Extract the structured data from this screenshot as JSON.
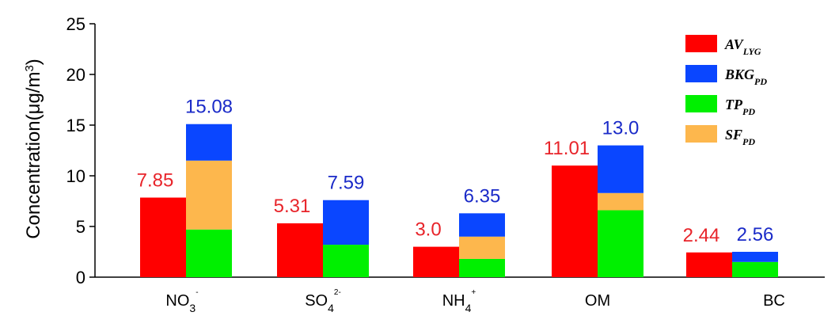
{
  "chart_data": {
    "type": "bar",
    "ylabel_main": "Concentration(μg/m",
    "ylabel_sup": "3",
    "ylabel_tail": ")",
    "ylim": [
      0,
      25
    ],
    "yticks": [
      "0",
      "5",
      "10",
      "15",
      "20",
      "25"
    ],
    "categories": [
      {
        "base": "NO",
        "sub": "3",
        "sup": "-"
      },
      {
        "base": "SO",
        "sub": "4",
        "sup": "2-"
      },
      {
        "base": "NH",
        "sub": "4",
        "sup": "+"
      },
      {
        "base": "OM",
        "sub": "",
        "sup": ""
      },
      {
        "base": "BC",
        "sub": "",
        "sup": ""
      }
    ],
    "series": [
      {
        "name": {
          "base": "AV",
          "sub": "LYG"
        },
        "color": "#ff0000",
        "values": [
          7.85,
          5.31,
          3.0,
          11.01,
          2.44
        ]
      },
      {
        "name": {
          "base": "BKG",
          "sub": "PD"
        },
        "color": "#0a46ff",
        "values": [
          3.6,
          4.4,
          2.3,
          4.7,
          1.0
        ]
      },
      {
        "name": {
          "base": "TP",
          "sub": "PD"
        },
        "color": "#00f000",
        "values": [
          4.7,
          3.2,
          1.8,
          6.6,
          1.5
        ]
      },
      {
        "name": {
          "base": "SF",
          "sub": "PD"
        },
        "color": "#fdb74d",
        "values": [
          6.8,
          0,
          2.2,
          1.7,
          0
        ]
      }
    ],
    "data_labels": {
      "av": [
        "7.85",
        "5.31",
        "3.0",
        "11.01",
        "2.44"
      ],
      "pd": [
        "15.08",
        "7.59",
        "6.35",
        "13.0",
        "2.56"
      ]
    },
    "label_colors": {
      "av": "#e8242a",
      "pd": "#1a2ac8"
    },
    "legend_position": "top-right",
    "grid": false
  }
}
